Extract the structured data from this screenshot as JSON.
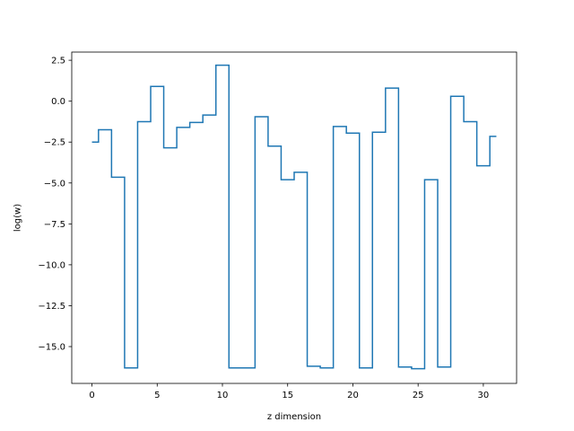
{
  "chart_data": {
    "type": "line",
    "drawstyle": "steps-mid",
    "title": "",
    "xlabel": "z dimension",
    "ylabel": "log(w)",
    "xlim": [
      -1.55,
      32.55
    ],
    "ylim": [
      -17.25,
      3.0
    ],
    "xticks": [
      0,
      5,
      10,
      15,
      20,
      25,
      30
    ],
    "xtick_labels": [
      "0",
      "5",
      "10",
      "15",
      "20",
      "25",
      "30"
    ],
    "yticks": [
      2.5,
      0.0,
      -2.5,
      -5.0,
      -7.5,
      -10.0,
      -12.5,
      -15.0
    ],
    "ytick_labels": [
      "2.5",
      "0.0",
      "−2.5",
      "−5.0",
      "−7.5",
      "−10.0",
      "−12.5",
      "−15.0"
    ],
    "grid": false,
    "line_color": "#1f77b4",
    "series": [
      {
        "x": [
          0,
          1,
          2,
          3,
          4,
          5,
          6,
          7,
          8,
          9,
          10,
          11,
          12,
          13,
          14,
          15,
          16,
          17,
          18,
          19,
          20,
          21,
          22,
          23,
          24,
          25,
          26,
          27,
          28,
          29,
          30,
          31
        ],
        "values": [
          -2.5,
          -1.75,
          -4.65,
          -16.3,
          -1.25,
          0.9,
          -2.85,
          -1.6,
          -1.3,
          -0.85,
          2.2,
          -16.3,
          -16.3,
          -0.95,
          -2.75,
          -4.8,
          -4.35,
          -16.2,
          -16.3,
          -1.55,
          -1.95,
          -16.3,
          -1.9,
          0.8,
          -16.25,
          -16.35,
          -4.8,
          -16.25,
          0.3,
          -1.25,
          -3.95,
          -2.15
        ]
      }
    ]
  }
}
